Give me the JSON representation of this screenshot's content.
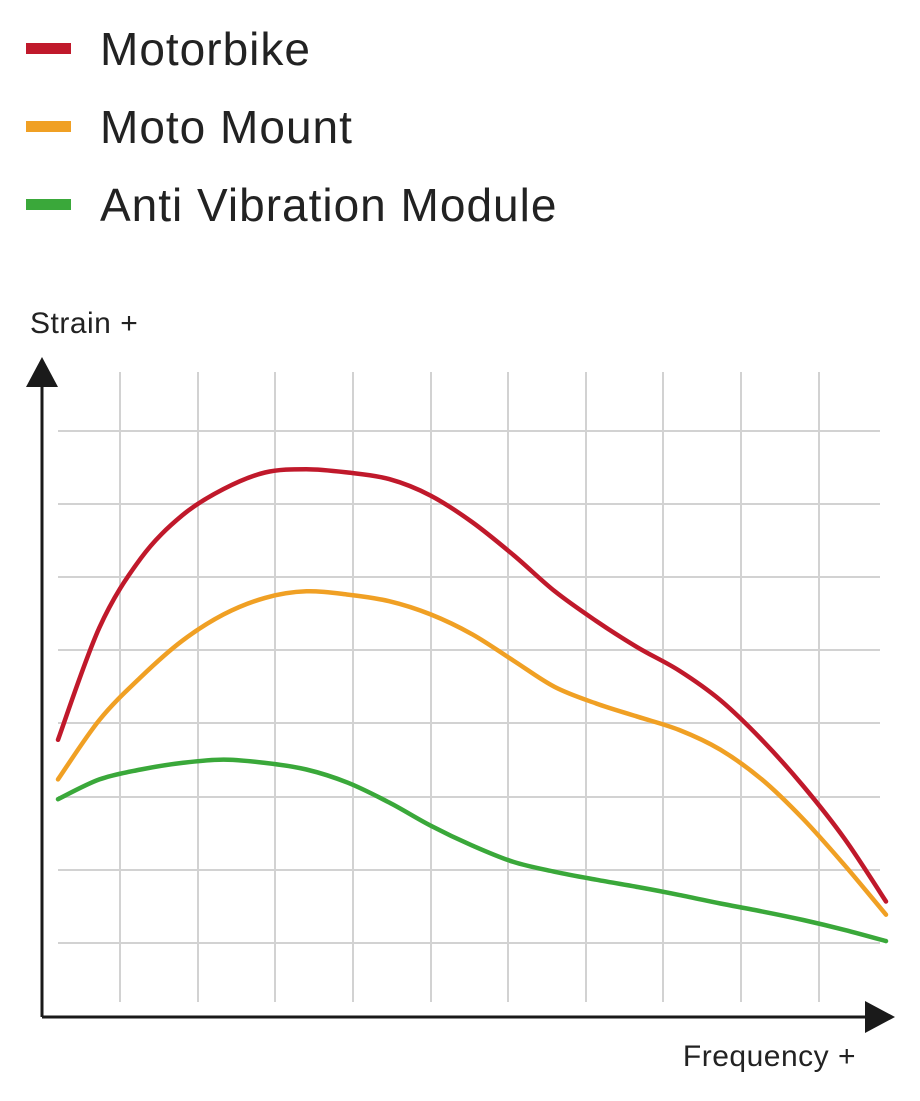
{
  "chart_data": {
    "type": "line",
    "title": "",
    "xlabel": "Frequency +",
    "ylabel": "Strain +",
    "xlim": [
      0,
      10
    ],
    "ylim": [
      0,
      10
    ],
    "grid": true,
    "legend_position": "top-left",
    "x": [
      0,
      0.5,
      1,
      1.5,
      2,
      2.5,
      3,
      3.5,
      4,
      4.5,
      5,
      5.5,
      6,
      6.5,
      7,
      7.5,
      8,
      8.5,
      9,
      9.5,
      10
    ],
    "series": [
      {
        "name": "Motorbike",
        "color": "#c0192b",
        "values": [
          4.2,
          5.9,
          6.95,
          7.6,
          8.0,
          8.25,
          8.3,
          8.25,
          8.15,
          7.9,
          7.5,
          7.0,
          6.45,
          6.0,
          5.6,
          5.25,
          4.8,
          4.2,
          3.5,
          2.7,
          1.75
        ]
      },
      {
        "name": "Moto Mount",
        "color": "#f0a024",
        "values": [
          3.6,
          4.5,
          5.15,
          5.7,
          6.1,
          6.35,
          6.45,
          6.4,
          6.3,
          6.1,
          5.8,
          5.4,
          5.0,
          4.75,
          4.55,
          4.35,
          4.05,
          3.6,
          3.0,
          2.3,
          1.55
        ]
      },
      {
        "name": "Anti Vibration Module",
        "color": "#3aa83a",
        "values": [
          3.3,
          3.6,
          3.75,
          3.85,
          3.9,
          3.85,
          3.75,
          3.55,
          3.25,
          2.9,
          2.6,
          2.35,
          2.2,
          2.08,
          1.97,
          1.85,
          1.72,
          1.6,
          1.47,
          1.32,
          1.15
        ]
      }
    ]
  }
}
